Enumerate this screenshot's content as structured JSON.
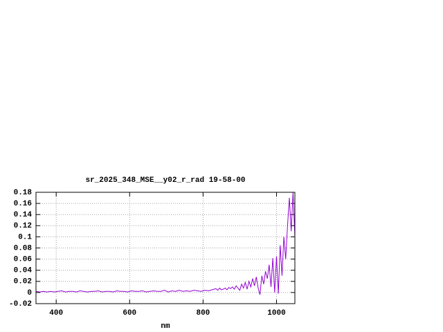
{
  "chart_data": {
    "type": "line",
    "title": "sr_2025_348_MSE__y02_r_rad 19-58-00",
    "xlabel": "nm",
    "color": "#9400d3",
    "grid": true,
    "xlim": [
      345,
      1050
    ],
    "ylim": [
      -0.02,
      0.18
    ],
    "xticks": [
      400,
      600,
      800,
      1000
    ],
    "yticks": [
      -0.02,
      0,
      0.02,
      0.04,
      0.06,
      0.08,
      0.1,
      0.12,
      0.14,
      0.16,
      0.18
    ],
    "x": [
      345,
      355,
      365,
      375,
      385,
      395,
      405,
      415,
      425,
      435,
      445,
      455,
      465,
      475,
      485,
      495,
      505,
      515,
      525,
      535,
      545,
      555,
      565,
      575,
      585,
      595,
      605,
      615,
      625,
      635,
      645,
      655,
      665,
      675,
      685,
      695,
      705,
      715,
      725,
      735,
      745,
      755,
      765,
      775,
      785,
      795,
      805,
      815,
      825,
      835,
      840,
      845,
      850,
      855,
      860,
      865,
      870,
      875,
      880,
      885,
      890,
      895,
      900,
      905,
      910,
      915,
      920,
      925,
      930,
      935,
      940,
      945,
      950,
      955,
      960,
      965,
      970,
      975,
      980,
      985,
      990,
      995,
      1000,
      1005,
      1010,
      1015,
      1020,
      1025,
      1030,
      1035,
      1040,
      1045,
      1050
    ],
    "values": [
      0.002,
      0.001,
      0.002,
      0.001,
      0.002,
      0.001,
      0.002,
      0.003,
      0.001,
      0.002,
      0.002,
      0.001,
      0.003,
      0.002,
      0.001,
      0.002,
      0.002,
      0.003,
      0.001,
      0.002,
      0.002,
      0.001,
      0.003,
      0.002,
      0.002,
      0.001,
      0.003,
      0.002,
      0.002,
      0.003,
      0.001,
      0.002,
      0.003,
      0.002,
      0.002,
      0.004,
      0.001,
      0.003,
      0.002,
      0.004,
      0.002,
      0.003,
      0.002,
      0.004,
      0.003,
      0.002,
      0.004,
      0.003,
      0.005,
      0.007,
      0.004,
      0.008,
      0.005,
      0.006,
      0.008,
      0.005,
      0.009,
      0.007,
      0.01,
      0.006,
      0.012,
      0.008,
      0.004,
      0.015,
      0.008,
      0.018,
      0.006,
      0.02,
      0.01,
      0.025,
      0.012,
      0.028,
      0.008,
      -0.004,
      0.03,
      0.015,
      0.038,
      0.025,
      0.05,
      0.01,
      0.062,
      0.0,
      0.065,
      -0.002,
      0.085,
      0.03,
      0.1,
      0.06,
      0.12,
      0.17,
      0.11,
      0.18,
      0.1
    ]
  }
}
